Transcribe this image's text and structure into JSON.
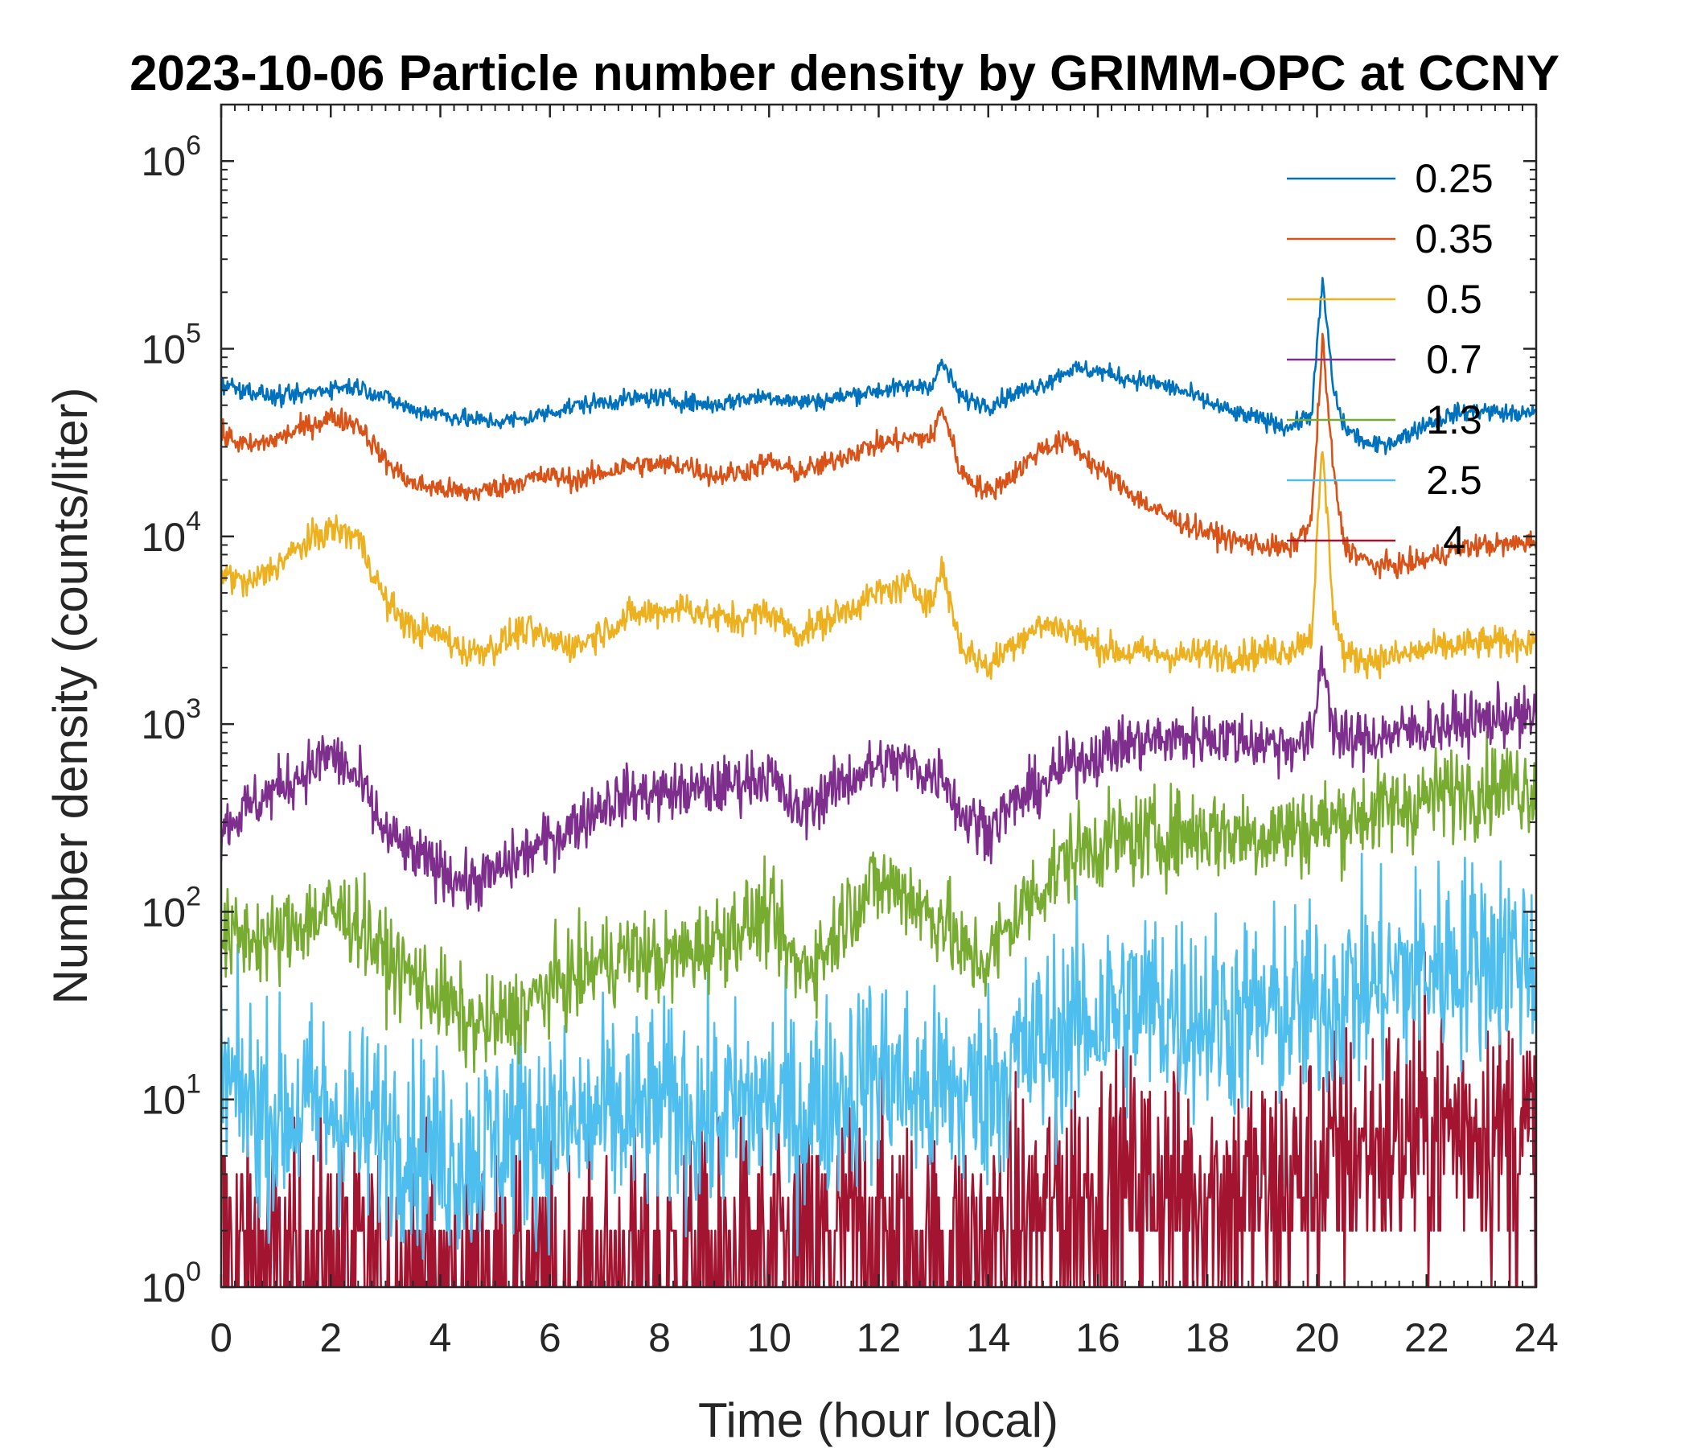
{
  "chart_data": {
    "type": "line",
    "title": "2023-10-06 Particle number density by GRIMM-OPC at CCNY",
    "xlabel": "Time (hour local)",
    "ylabel": "Number density (counts/liter)",
    "xlim": [
      0,
      24
    ],
    "ylim": [
      1,
      2000000
    ],
    "yscale": "log",
    "grid": false,
    "legend_position": "top-right",
    "x_ticks": [
      0,
      2,
      4,
      6,
      8,
      10,
      12,
      14,
      16,
      18,
      20,
      22,
      24
    ],
    "x_tick_labels": [
      "0",
      "2",
      "4",
      "6",
      "8",
      "10",
      "12",
      "14",
      "16",
      "18",
      "20",
      "22",
      "24"
    ],
    "y_ticks": [
      1,
      10,
      100,
      1000,
      10000,
      100000,
      1000000
    ],
    "y_tick_labels": [
      {
        "base": "10",
        "exp": "0"
      },
      {
        "base": "10",
        "exp": "1"
      },
      {
        "base": "10",
        "exp": "2"
      },
      {
        "base": "10",
        "exp": "3"
      },
      {
        "base": "10",
        "exp": "4"
      },
      {
        "base": "10",
        "exp": "5"
      },
      {
        "base": "10",
        "exp": "6"
      }
    ],
    "x": [
      0,
      0.5,
      1,
      1.5,
      2,
      2.5,
      3,
      3.5,
      4,
      4.5,
      5,
      5.5,
      6,
      6.5,
      7,
      7.5,
      8,
      8.5,
      9,
      9.5,
      10,
      10.5,
      11,
      11.5,
      12,
      12.5,
      13,
      13.15,
      13.5,
      14,
      14.5,
      15,
      15.5,
      16,
      16.5,
      17,
      17.5,
      18,
      18.5,
      19,
      19.5,
      19.9,
      20.1,
      20.3,
      20.5,
      21,
      21.5,
      22,
      22.5,
      23,
      23.5,
      24
    ],
    "series": [
      {
        "name": "0.25",
        "color": "#0072BD",
        "noise": 0.08,
        "values": [
          65000,
          60000,
          55000,
          57000,
          62000,
          63000,
          55000,
          47000,
          45000,
          42000,
          41000,
          42000,
          46000,
          50000,
          52000,
          54000,
          55000,
          52000,
          50000,
          54000,
          56000,
          52000,
          53000,
          57000,
          60000,
          62000,
          65000,
          85000,
          55000,
          50000,
          58000,
          65000,
          78000,
          76000,
          70000,
          66000,
          60000,
          52000,
          45000,
          42000,
          38000,
          45000,
          230000,
          60000,
          38000,
          30000,
          33000,
          40000,
          45000,
          47000,
          45000,
          45000
        ]
      },
      {
        "name": "0.35",
        "color": "#D95319",
        "noise": 0.1,
        "values": [
          35000,
          30000,
          33000,
          38000,
          43000,
          40000,
          25000,
          19000,
          18000,
          17000,
          18000,
          20000,
          21000,
          20000,
          22000,
          24000,
          24000,
          24000,
          21000,
          22000,
          25000,
          22000,
          24000,
          28000,
          31000,
          33000,
          34000,
          50000,
          22000,
          17000,
          22000,
          30000,
          32000,
          23000,
          18000,
          14000,
          12000,
          10500,
          9500,
          9000,
          8500,
          12000,
          110000,
          22000,
          9000,
          7000,
          7000,
          7500,
          8500,
          9000,
          9000,
          9500
        ]
      },
      {
        "name": "0.5",
        "color": "#EDB120",
        "noise": 0.14,
        "values": [
          6500,
          5500,
          7000,
          9000,
          11000,
          10000,
          4500,
          3200,
          3000,
          2400,
          2600,
          3200,
          2800,
          2600,
          3200,
          3800,
          4000,
          4200,
          3700,
          3600,
          4000,
          3000,
          3500,
          4200,
          5000,
          5500,
          4500,
          7000,
          2600,
          2000,
          2800,
          3400,
          3200,
          2600,
          2400,
          2400,
          2300,
          2400,
          2300,
          2400,
          2500,
          3000,
          30000,
          4000,
          2300,
          2200,
          2300,
          2500,
          2600,
          2700,
          2700,
          2800
        ]
      },
      {
        "name": "0.7",
        "color": "#7E2F8E",
        "noise": 0.25,
        "values": [
          280,
          360,
          450,
          550,
          700,
          500,
          260,
          200,
          170,
          140,
          160,
          200,
          240,
          300,
          380,
          420,
          430,
          440,
          450,
          500,
          540,
          330,
          420,
          520,
          600,
          620,
          520,
          580,
          330,
          280,
          380,
          480,
          620,
          700,
          780,
          820,
          840,
          860,
          840,
          800,
          780,
          800,
          2400,
          950,
          800,
          850,
          900,
          950,
          1000,
          1050,
          1100,
          1050
        ]
      },
      {
        "name": "1.3",
        "color": "#77AC30",
        "noise": 0.4,
        "values": [
          70,
          75,
          70,
          90,
          100,
          90,
          55,
          45,
          35,
          25,
          25,
          30,
          40,
          45,
          55,
          60,
          55,
          60,
          70,
          85,
          95,
          50,
          60,
          110,
          140,
          130,
          90,
          100,
          60,
          55,
          95,
          140,
          200,
          230,
          240,
          250,
          260,
          270,
          260,
          260,
          270,
          280,
          290,
          300,
          320,
          340,
          360,
          400,
          440,
          460,
          480,
          460
        ]
      },
      {
        "name": "2.5",
        "color": "#4DBEEE",
        "noise": 0.9,
        "values": [
          12,
          10,
          8,
          9,
          9,
          7,
          7,
          6,
          5,
          5,
          6,
          7,
          7,
          7,
          8,
          8,
          9,
          9,
          8,
          9,
          10,
          8,
          10,
          12,
          14,
          12,
          10,
          12,
          10,
          12,
          16,
          20,
          24,
          28,
          30,
          32,
          30,
          28,
          27,
          28,
          30,
          30,
          32,
          35,
          38,
          40,
          45,
          50,
          55,
          58,
          60,
          55
        ]
      },
      {
        "name": "4",
        "color": "#A2142F",
        "noise": 1.2,
        "floor": 1,
        "values": [
          2,
          1.5,
          1.3,
          1.2,
          1.3,
          1.2,
          1.1,
          1,
          1,
          1,
          1,
          1,
          1,
          1,
          1.1,
          1.1,
          1.2,
          1.2,
          1.3,
          1.3,
          1.4,
          1.2,
          1.6,
          2,
          2,
          1.6,
          1.5,
          1.5,
          1.4,
          1.6,
          2,
          2.5,
          3,
          3.2,
          3.2,
          3.5,
          3.2,
          3.2,
          3,
          3.2,
          3.5,
          3.8,
          4,
          4.5,
          5,
          5.5,
          6,
          7,
          7,
          7,
          6.5,
          6
        ]
      }
    ]
  }
}
